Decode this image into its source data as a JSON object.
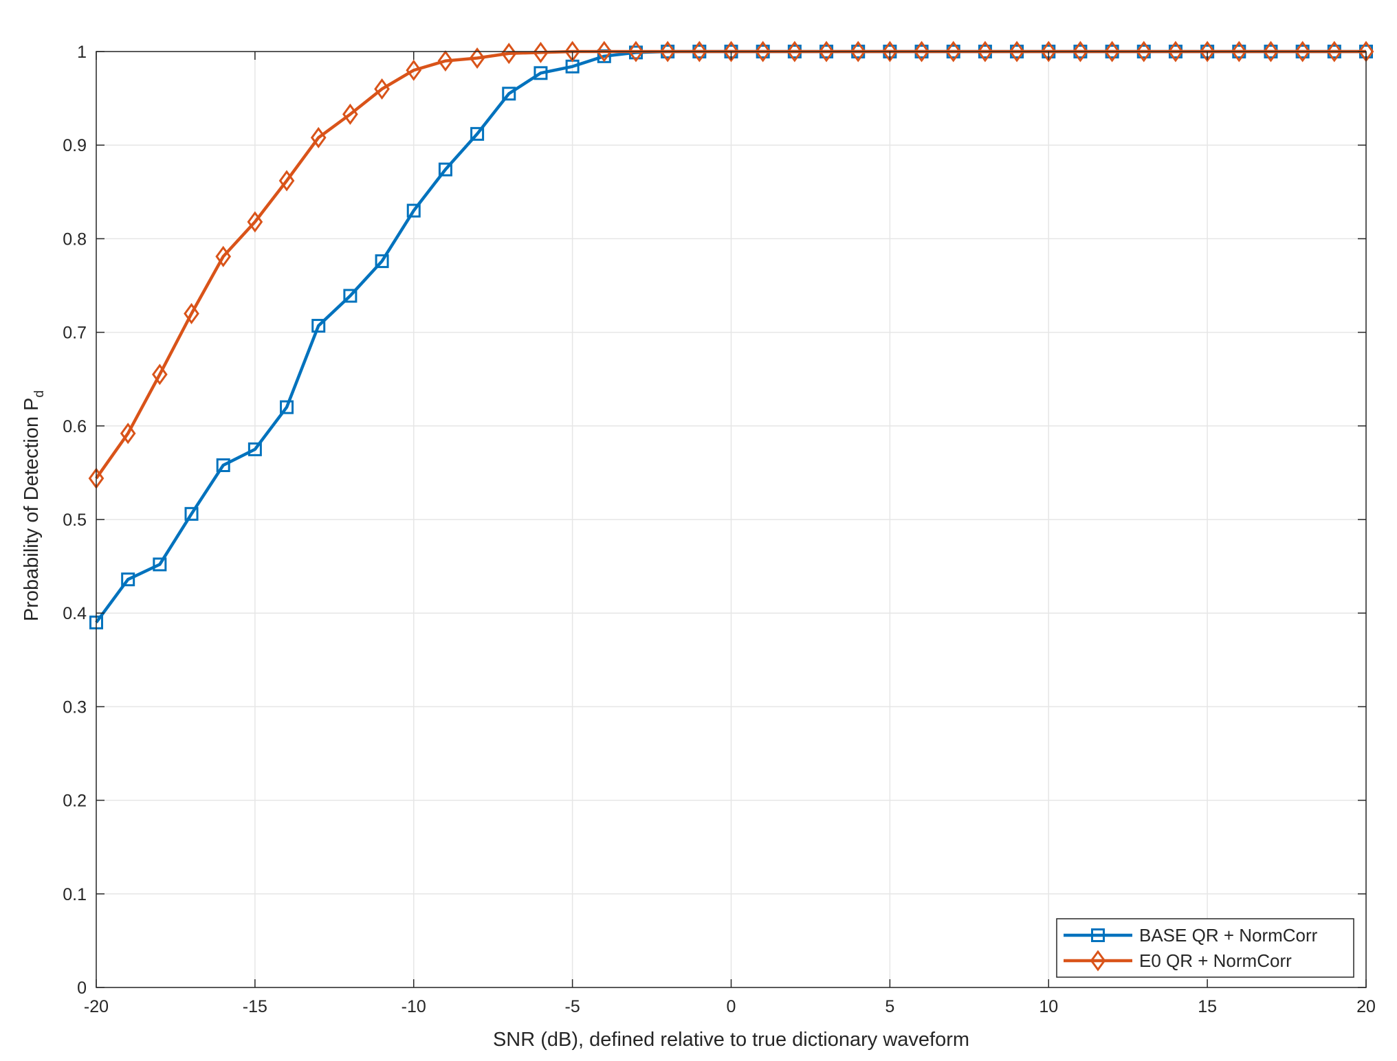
{
  "chart_data": {
    "type": "line",
    "title": "",
    "xlabel": "SNR (dB), defined relative to true dictionary waveform",
    "ylabel": "Probability of Detection P",
    "ylabel_subscript": "d",
    "xlim": [
      -20,
      20
    ],
    "ylim": [
      0,
      1
    ],
    "x_ticks": [
      -20,
      -15,
      -10,
      -5,
      0,
      5,
      10,
      15,
      20
    ],
    "y_ticks": [
      0,
      0.1,
      0.2,
      0.3,
      0.4,
      0.5,
      0.6,
      0.7,
      0.8,
      0.9,
      1
    ],
    "x_tick_labels": [
      "-20",
      "-15",
      "-10",
      "-5",
      "0",
      "5",
      "10",
      "15",
      "20"
    ],
    "y_tick_labels": [
      "0",
      "0.1",
      "0.2",
      "0.3",
      "0.4",
      "0.5",
      "0.6",
      "0.7",
      "0.8",
      "0.9",
      "1"
    ],
    "grid": true,
    "legend_position": "bottom-right",
    "x": [
      -20,
      -19,
      -18,
      -17,
      -16,
      -15,
      -14,
      -13,
      -12,
      -11,
      -10,
      -9,
      -8,
      -7,
      -6,
      -5,
      -4,
      -3,
      -2,
      -1,
      0,
      1,
      2,
      3,
      4,
      5,
      6,
      7,
      8,
      9,
      10,
      11,
      12,
      13,
      14,
      15,
      16,
      17,
      18,
      19,
      20
    ],
    "series": [
      {
        "name": "BASE QR + NormCorr",
        "color": "#0072bd",
        "marker": "square",
        "values": [
          0.39,
          0.436,
          0.452,
          0.506,
          0.558,
          0.575,
          0.62,
          0.707,
          0.739,
          0.776,
          0.83,
          0.874,
          0.912,
          0.955,
          0.977,
          0.984,
          0.995,
          0.999,
          1,
          1,
          1,
          1,
          1,
          1,
          1,
          1,
          1,
          1,
          1,
          1,
          1,
          1,
          1,
          1,
          1,
          1,
          1,
          1,
          1,
          1,
          1
        ]
      },
      {
        "name": "E0 QR + NormCorr",
        "color": "#d95319",
        "marker": "diamond",
        "values": [
          0.544,
          0.592,
          0.655,
          0.72,
          0.781,
          0.818,
          0.862,
          0.908,
          0.933,
          0.96,
          0.98,
          0.99,
          0.993,
          0.998,
          0.999,
          1,
          1,
          1,
          1,
          1,
          1,
          1,
          1,
          1,
          1,
          1,
          1,
          1,
          1,
          1,
          1,
          1,
          1,
          1,
          1,
          1,
          1,
          1,
          1,
          1,
          1
        ]
      }
    ]
  }
}
